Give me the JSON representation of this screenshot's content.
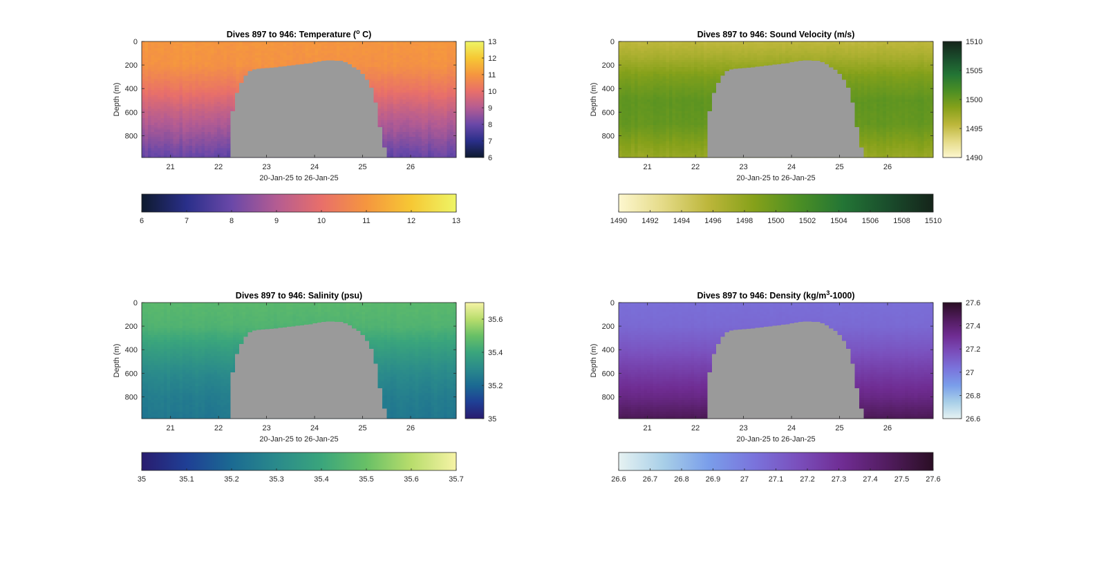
{
  "figure": {
    "background": "#ffffff",
    "section_color": "#9a9a9a"
  },
  "chart_data": [
    {
      "type": "heatmap",
      "variable": "temperature",
      "title": "Dives 897 to 946: Temperature (",
      "title_sup": "o",
      "title_tail": " C)",
      "xlabel": "20-Jan-25 to 26-Jan-25",
      "ylabel": "Depth (m)",
      "xlim": [
        20.4,
        26.95
      ],
      "ylim": [
        0,
        985
      ],
      "y_reversed": true,
      "x_ticks": [
        "21",
        "22",
        "23",
        "24",
        "25",
        "26"
      ],
      "y_ticks": [
        "0",
        "200",
        "400",
        "600",
        "800"
      ],
      "grid": false,
      "clim": [
        6,
        13
      ],
      "colormap": [
        "#0e1a2e",
        "#2a2f8a",
        "#6a48a8",
        "#b45c92",
        "#e86f6a",
        "#f5963f",
        "#f6c834",
        "#eef566"
      ],
      "vertical_colorbar_ticks": [
        "6",
        "7",
        "8",
        "9",
        "10",
        "11",
        "12",
        "13"
      ],
      "horizontal_colorbar_ticks": [
        "6",
        "7",
        "8",
        "9",
        "10",
        "11",
        "12",
        "13"
      ],
      "profile": [
        {
          "depth": 0,
          "value": 11.0
        },
        {
          "depth": 200,
          "value": 10.9
        },
        {
          "depth": 400,
          "value": 10.2
        },
        {
          "depth": 600,
          "value": 9.3
        },
        {
          "depth": 800,
          "value": 8.6
        },
        {
          "depth": 985,
          "value": 7.9
        }
      ],
      "variability": 0.3
    },
    {
      "type": "heatmap",
      "variable": "sound velocity",
      "title": "Dives 897 to 946: Sound Velocity (m/s)",
      "title_sup": "",
      "title_tail": "",
      "xlabel": "20-Jan-25 to 26-Jan-25",
      "ylabel": "Depth (m)",
      "xlim": [
        20.4,
        26.95
      ],
      "ylim": [
        0,
        985
      ],
      "y_reversed": true,
      "x_ticks": [
        "21",
        "22",
        "23",
        "24",
        "25",
        "26"
      ],
      "y_ticks": [
        "0",
        "200",
        "400",
        "600",
        "800"
      ],
      "grid": false,
      "clim": [
        1490,
        1510
      ],
      "colormap": [
        "#fdf7cf",
        "#e4da86",
        "#bcb63a",
        "#86a11a",
        "#4c8f24",
        "#237535",
        "#1a4d2c",
        "#15241a"
      ],
      "vertical_colorbar_ticks": [
        "1490",
        "1495",
        "1500",
        "1505",
        "1510"
      ],
      "horizontal_colorbar_ticks": [
        "1490",
        "1492",
        "1494",
        "1496",
        "1498",
        "1500",
        "1502",
        "1504",
        "1506",
        "1508",
        "1510"
      ],
      "profile": [
        {
          "depth": 0,
          "value": 1495.5
        },
        {
          "depth": 150,
          "value": 1497.0
        },
        {
          "depth": 300,
          "value": 1499.0
        },
        {
          "depth": 500,
          "value": 1500.5
        },
        {
          "depth": 700,
          "value": 1500.2
        },
        {
          "depth": 850,
          "value": 1498.8
        },
        {
          "depth": 985,
          "value": 1497.6
        }
      ],
      "variability": 0.6
    },
    {
      "type": "heatmap",
      "variable": "salinity",
      "title": "Dives 897 to 946: Salinity (psu)",
      "title_sup": "",
      "title_tail": "",
      "xlabel": "20-Jan-25 to 26-Jan-25",
      "ylabel": "Depth (m)",
      "xlim": [
        20.4,
        26.95
      ],
      "ylim": [
        0,
        985
      ],
      "y_reversed": true,
      "x_ticks": [
        "21",
        "22",
        "23",
        "24",
        "25",
        "26"
      ],
      "y_ticks": [
        "0",
        "200",
        "400",
        "600",
        "800"
      ],
      "grid": false,
      "clim": [
        35,
        35.7
      ],
      "colormap": [
        "#291c6f",
        "#1f3f95",
        "#1b6a92",
        "#2a8a8b",
        "#3aa57c",
        "#68c066",
        "#b8dd6c",
        "#f6f3a6"
      ],
      "vertical_colorbar_ticks": [
        "35",
        "35.2",
        "35.4",
        "35.6"
      ],
      "horizontal_colorbar_ticks": [
        "35",
        "35.1",
        "35.2",
        "35.3",
        "35.4",
        "35.5",
        "35.6",
        "35.7"
      ],
      "profile": [
        {
          "depth": 0,
          "value": 35.47
        },
        {
          "depth": 200,
          "value": 35.45
        },
        {
          "depth": 400,
          "value": 35.37
        },
        {
          "depth": 600,
          "value": 35.3
        },
        {
          "depth": 800,
          "value": 35.26
        },
        {
          "depth": 985,
          "value": 35.24
        }
      ],
      "variability": 0.02
    },
    {
      "type": "heatmap",
      "variable": "density",
      "title": "Dives 897 to 946: Density (kg/m",
      "title_sup": "3",
      "title_tail": "-1000)",
      "xlabel": "20-Jan-25 to 26-Jan-25",
      "ylabel": "Depth (m)",
      "xlim": [
        20.4,
        26.95
      ],
      "ylim": [
        0,
        985
      ],
      "y_reversed": true,
      "x_ticks": [
        "21",
        "22",
        "23",
        "24",
        "25",
        "26"
      ],
      "y_ticks": [
        "0",
        "200",
        "400",
        "600",
        "800"
      ],
      "grid": false,
      "clim": [
        26.6,
        27.6
      ],
      "colormap": [
        "#e6f2f2",
        "#a8cfe8",
        "#7a9eea",
        "#7a74dc",
        "#7a4fbc",
        "#6f2c92",
        "#511c5e",
        "#2a0e24"
      ],
      "vertical_colorbar_ticks": [
        "26.6",
        "26.8",
        "27",
        "27.2",
        "27.4",
        "27.6"
      ],
      "horizontal_colorbar_ticks": [
        "26.6",
        "26.7",
        "26.8",
        "26.9",
        "27",
        "27.1",
        "27.2",
        "27.3",
        "27.4",
        "27.5",
        "27.6"
      ],
      "profile": [
        {
          "depth": 0,
          "value": 27.05
        },
        {
          "depth": 200,
          "value": 27.07
        },
        {
          "depth": 400,
          "value": 27.15
        },
        {
          "depth": 600,
          "value": 27.25
        },
        {
          "depth": 800,
          "value": 27.35
        },
        {
          "depth": 985,
          "value": 27.48
        }
      ],
      "variability": 0.015
    }
  ],
  "missing_data_section": {
    "x_range": [
      22.25,
      25.5
    ],
    "edge": [
      {
        "x": 22.25,
        "depth": 680
      },
      {
        "x": 22.37,
        "depth": 450
      },
      {
        "x": 22.5,
        "depth": 330
      },
      {
        "x": 22.6,
        "depth": 270
      },
      {
        "x": 22.7,
        "depth": 240
      },
      {
        "x": 22.85,
        "depth": 230
      },
      {
        "x": 23.0,
        "depth": 225
      },
      {
        "x": 23.3,
        "depth": 215
      },
      {
        "x": 23.6,
        "depth": 200
      },
      {
        "x": 23.9,
        "depth": 185
      },
      {
        "x": 24.1,
        "depth": 170
      },
      {
        "x": 24.3,
        "depth": 160
      },
      {
        "x": 24.55,
        "depth": 165
      },
      {
        "x": 24.7,
        "depth": 185
      },
      {
        "x": 24.8,
        "depth": 215
      },
      {
        "x": 24.95,
        "depth": 250
      },
      {
        "x": 25.05,
        "depth": 300
      },
      {
        "x": 25.15,
        "depth": 360
      },
      {
        "x": 25.25,
        "depth": 460
      },
      {
        "x": 25.35,
        "depth": 700
      },
      {
        "x": 25.5,
        "depth": 985
      }
    ]
  }
}
